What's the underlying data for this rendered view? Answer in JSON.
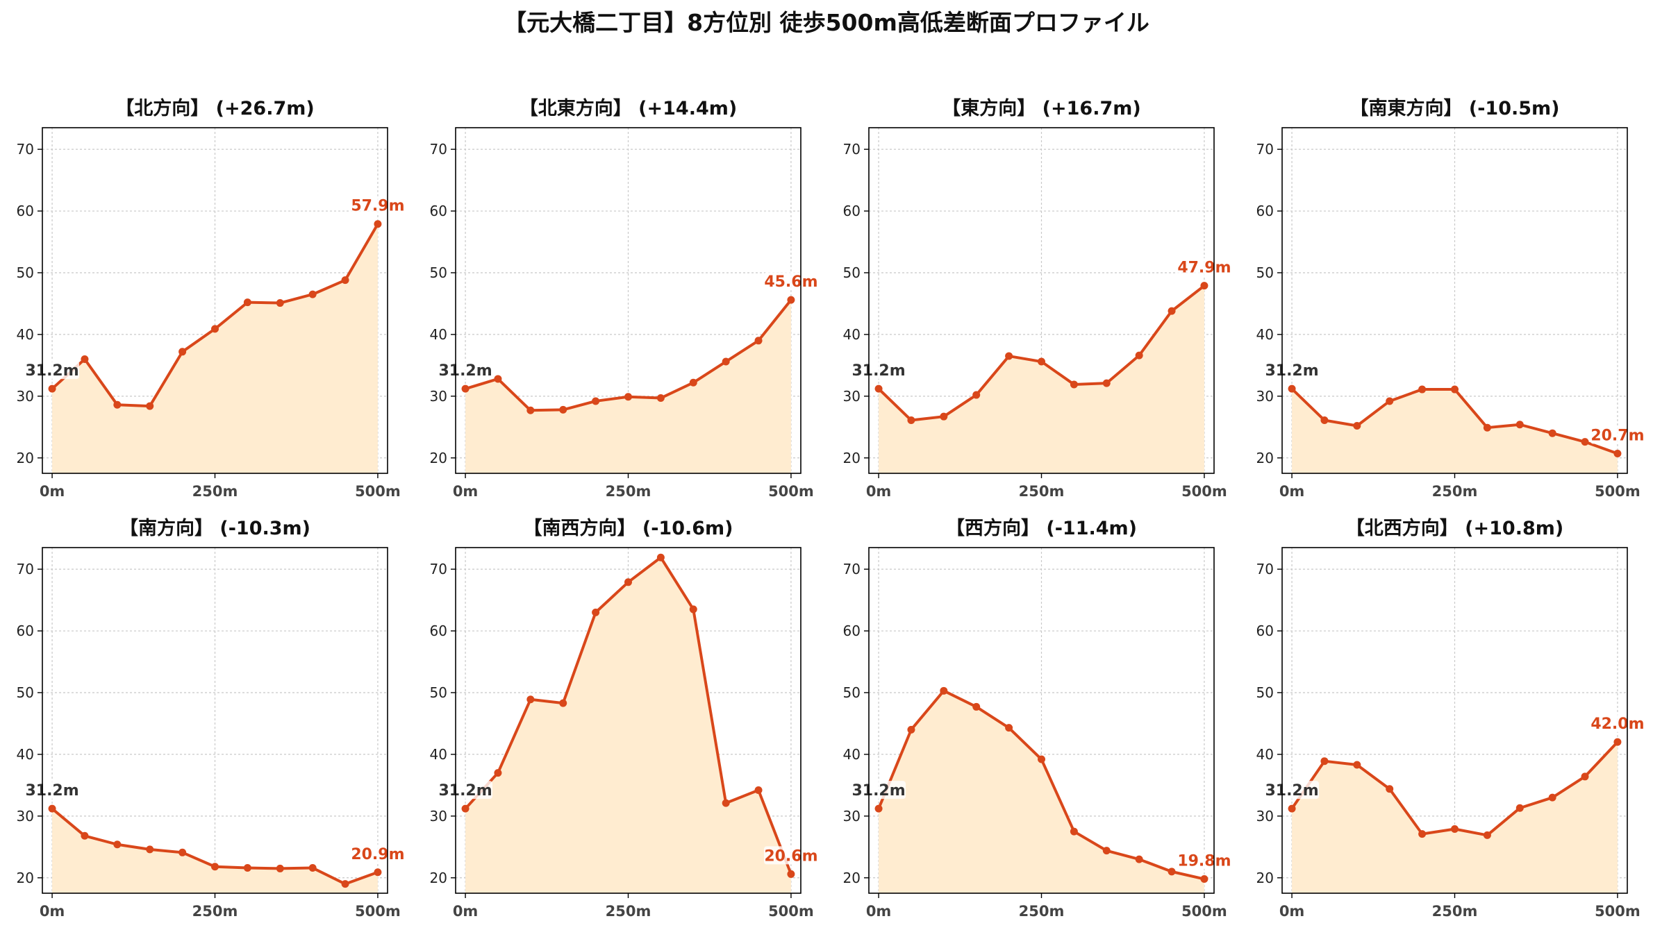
{
  "title": "【元大橋二丁目】8方位別 徒歩500m高低差断面プロファイル",
  "colors": {
    "line": "#d9471a",
    "fill": "#ffecd0",
    "start_label": "#333333",
    "end_label": "#d9471a",
    "grid": "#c8c8c8",
    "axis": "#000000"
  },
  "chart_data": [
    {
      "type": "area",
      "title": "【北方向】 (+26.7m)",
      "x": [
        0,
        50,
        100,
        150,
        200,
        250,
        300,
        350,
        400,
        450,
        500
      ],
      "y": [
        31.2,
        36.0,
        28.6,
        28.4,
        37.2,
        40.9,
        45.2,
        45.1,
        46.5,
        48.8,
        57.9
      ],
      "start_label": "31.2m",
      "end_label": "57.9m",
      "xticks": [
        0,
        250,
        500
      ],
      "xtick_labels": [
        "0m",
        "250m",
        "500m"
      ],
      "yticks": [
        20,
        30,
        40,
        50,
        60,
        70
      ],
      "ylim": [
        17.5,
        73.5
      ],
      "xlim": [
        -15,
        515
      ],
      "grid": true
    },
    {
      "type": "area",
      "title": "【北東方向】 (+14.4m)",
      "x": [
        0,
        50,
        100,
        150,
        200,
        250,
        300,
        350,
        400,
        450,
        500
      ],
      "y": [
        31.2,
        32.8,
        27.7,
        27.8,
        29.2,
        29.9,
        29.7,
        32.2,
        35.6,
        39.0,
        45.6
      ],
      "start_label": "31.2m",
      "end_label": "45.6m",
      "xticks": [
        0,
        250,
        500
      ],
      "xtick_labels": [
        "0m",
        "250m",
        "500m"
      ],
      "yticks": [
        20,
        30,
        40,
        50,
        60,
        70
      ],
      "ylim": [
        17.5,
        73.5
      ],
      "xlim": [
        -15,
        515
      ],
      "grid": true
    },
    {
      "type": "area",
      "title": "【東方向】 (+16.7m)",
      "x": [
        0,
        50,
        100,
        150,
        200,
        250,
        300,
        350,
        400,
        450,
        500
      ],
      "y": [
        31.2,
        26.1,
        26.7,
        30.2,
        36.5,
        35.6,
        31.9,
        32.1,
        36.6,
        43.8,
        47.9
      ],
      "start_label": "31.2m",
      "end_label": "47.9m",
      "xticks": [
        0,
        250,
        500
      ],
      "xtick_labels": [
        "0m",
        "250m",
        "500m"
      ],
      "yticks": [
        20,
        30,
        40,
        50,
        60,
        70
      ],
      "ylim": [
        17.5,
        73.5
      ],
      "xlim": [
        -15,
        515
      ],
      "grid": true
    },
    {
      "type": "area",
      "title": "【南東方向】 (-10.5m)",
      "x": [
        0,
        50,
        100,
        150,
        200,
        250,
        300,
        350,
        400,
        450,
        500
      ],
      "y": [
        31.2,
        26.1,
        25.2,
        29.2,
        31.1,
        31.1,
        24.9,
        25.4,
        24.0,
        22.6,
        20.7
      ],
      "start_label": "31.2m",
      "end_label": "20.7m",
      "xticks": [
        0,
        250,
        500
      ],
      "xtick_labels": [
        "0m",
        "250m",
        "500m"
      ],
      "yticks": [
        20,
        30,
        40,
        50,
        60,
        70
      ],
      "ylim": [
        17.5,
        73.5
      ],
      "xlim": [
        -15,
        515
      ],
      "grid": true
    },
    {
      "type": "area",
      "title": "【南方向】 (-10.3m)",
      "x": [
        0,
        50,
        100,
        150,
        200,
        250,
        300,
        350,
        400,
        450,
        500
      ],
      "y": [
        31.2,
        26.8,
        25.4,
        24.6,
        24.1,
        21.8,
        21.6,
        21.5,
        21.6,
        19.0,
        20.9
      ],
      "start_label": "31.2m",
      "end_label": "20.9m",
      "xticks": [
        0,
        250,
        500
      ],
      "xtick_labels": [
        "0m",
        "250m",
        "500m"
      ],
      "yticks": [
        20,
        30,
        40,
        50,
        60,
        70
      ],
      "ylim": [
        17.5,
        73.5
      ],
      "xlim": [
        -15,
        515
      ],
      "grid": true
    },
    {
      "type": "area",
      "title": "【南西方向】 (-10.6m)",
      "x": [
        0,
        50,
        100,
        150,
        200,
        250,
        300,
        350,
        400,
        450,
        500
      ],
      "y": [
        31.2,
        37.0,
        48.9,
        48.3,
        63.0,
        67.9,
        71.9,
        63.5,
        32.1,
        34.2,
        20.6
      ],
      "start_label": "31.2m",
      "end_label": "20.6m",
      "xticks": [
        0,
        250,
        500
      ],
      "xtick_labels": [
        "0m",
        "250m",
        "500m"
      ],
      "yticks": [
        20,
        30,
        40,
        50,
        60,
        70
      ],
      "ylim": [
        17.5,
        73.5
      ],
      "xlim": [
        -15,
        515
      ],
      "grid": true
    },
    {
      "type": "area",
      "title": "【西方向】 (-11.4m)",
      "x": [
        0,
        50,
        100,
        150,
        200,
        250,
        300,
        350,
        400,
        450,
        500
      ],
      "y": [
        31.2,
        44.0,
        50.3,
        47.7,
        44.3,
        39.2,
        27.5,
        24.4,
        23.0,
        21.0,
        19.8
      ],
      "start_label": "31.2m",
      "end_label": "19.8m",
      "xticks": [
        0,
        250,
        500
      ],
      "xtick_labels": [
        "0m",
        "250m",
        "500m"
      ],
      "yticks": [
        20,
        30,
        40,
        50,
        60,
        70
      ],
      "ylim": [
        17.5,
        73.5
      ],
      "xlim": [
        -15,
        515
      ],
      "grid": true
    },
    {
      "type": "area",
      "title": "【北西方向】 (+10.8m)",
      "x": [
        0,
        50,
        100,
        150,
        200,
        250,
        300,
        350,
        400,
        450,
        500
      ],
      "y": [
        31.2,
        38.9,
        38.3,
        34.4,
        27.1,
        27.9,
        26.9,
        31.3,
        33.0,
        36.4,
        42.0
      ],
      "start_label": "31.2m",
      "end_label": "42.0m",
      "xticks": [
        0,
        250,
        500
      ],
      "xtick_labels": [
        "0m",
        "250m",
        "500m"
      ],
      "yticks": [
        20,
        30,
        40,
        50,
        60,
        70
      ],
      "ylim": [
        17.5,
        73.5
      ],
      "xlim": [
        -15,
        515
      ],
      "grid": true
    }
  ]
}
